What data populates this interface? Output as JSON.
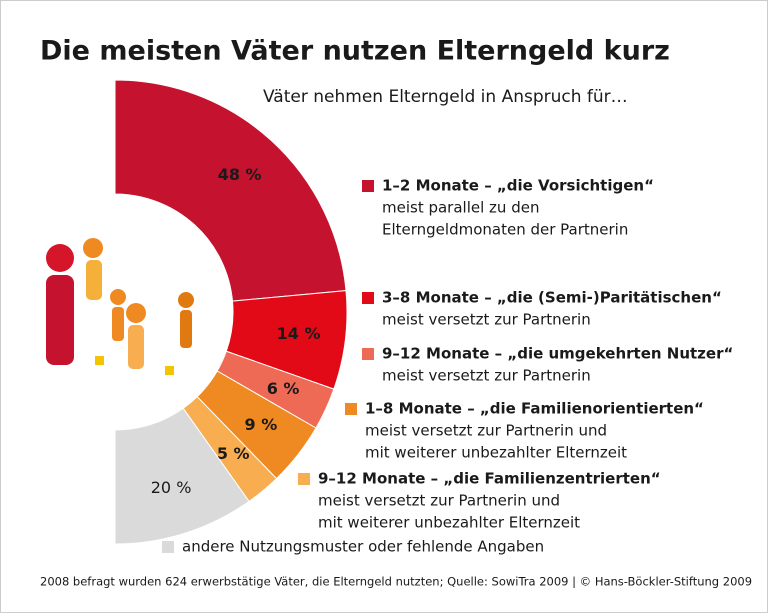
{
  "chart_data": {
    "type": "half-donut",
    "title": "Die meisten Väter nutzen Elterngeld kurz",
    "subtitle": "Väter nehmen Elterngeld in Anspruch für…",
    "categories": [
      "1–2 Monate – „die Vorsichtigen“",
      "3–8 Monate – „die (Semi-)Paritätischen“",
      "9–12 Monate – „die umgekehrten Nutzer“",
      "1–8 Monate – „die Familienorientierten“",
      "9–12 Monate – „die Familienzentrierten“",
      "andere Nutzungsmuster oder fehlende Angaben"
    ],
    "descriptions": [
      [
        "meist parallel zu den",
        "Elterngeldmonaten der Partnerin"
      ],
      [
        "meist versetzt zur Partnerin"
      ],
      [
        "meist versetzt zur Partnerin"
      ],
      [
        "meist versetzt zur Partnerin und",
        "mit weiterer unbezahlter Elternzeit"
      ],
      [
        "meist versetzt zur Partnerin und",
        "mit weiterer unbezahlter Elternzeit"
      ],
      []
    ],
    "values": [
      48,
      14,
      6,
      9,
      5,
      20
    ],
    "value_labels": [
      "48 %",
      "14 %",
      "6 %",
      "9 %",
      "5 %",
      "20 %"
    ],
    "colors": [
      "#c4122f",
      "#e30a17",
      "#ee6a55",
      "#ef8a22",
      "#f7ad50",
      "#dadada"
    ],
    "footnote": "2008 befragt wurden 624 erwerbstätige Väter, die Elterngeld nutzten; Quelle: SowiTra 2009 | © Hans-Böckler-Stiftung 2009"
  }
}
